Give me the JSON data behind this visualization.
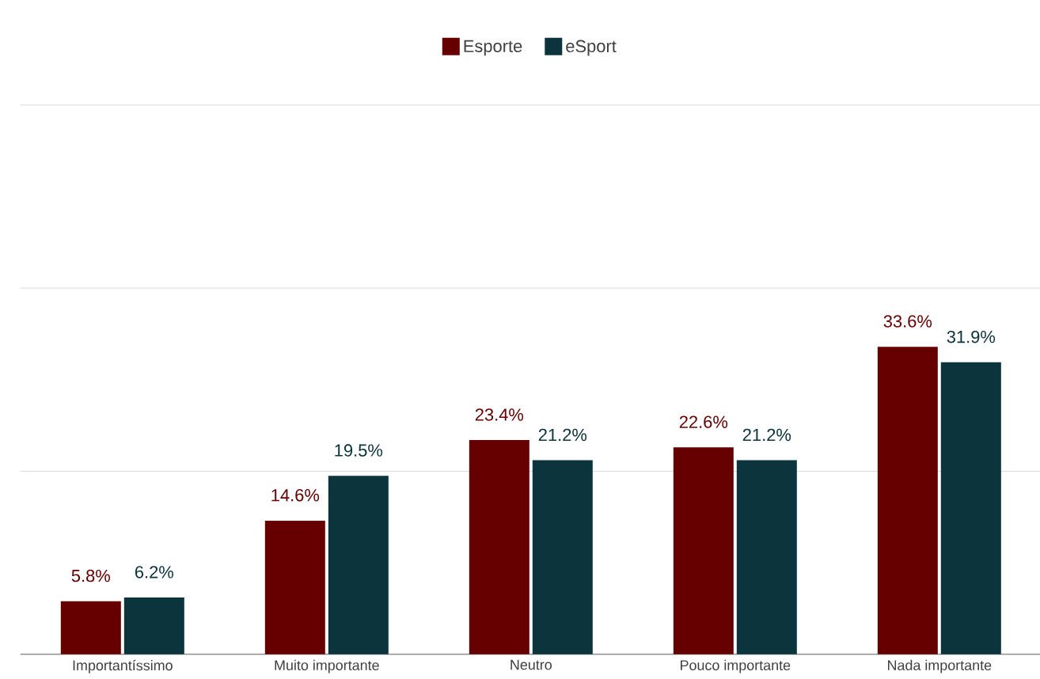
{
  "chart_data": {
    "type": "bar",
    "categories": [
      "Importantíssimo",
      "Muito importante",
      "Neutro",
      "Pouco importante",
      "Nada importante"
    ],
    "series": [
      {
        "name": "Esporte",
        "color": "#660000",
        "values": [
          5.8,
          14.6,
          23.4,
          22.6,
          33.6
        ],
        "value_labels": [
          "5.8%",
          "14.6%",
          "23.4%",
          "22.6%",
          "33.6%"
        ]
      },
      {
        "name": "eSport",
        "color": "#0c343d",
        "values": [
          6.2,
          19.5,
          21.2,
          21.2,
          31.9
        ],
        "value_labels": [
          "6.2%",
          "19.5%",
          "21.2%",
          "21.2%",
          "31.9%"
        ]
      }
    ],
    "ylim": [
      0,
      60
    ],
    "yticks": [
      {
        "value": 0,
        "label": null
      },
      {
        "value": 20,
        "label": null
      },
      {
        "value": 40,
        "label": null
      },
      {
        "value": 60,
        "label": null
      }
    ],
    "tick_labels": "x",
    "grid": "y",
    "legend": "top"
  }
}
